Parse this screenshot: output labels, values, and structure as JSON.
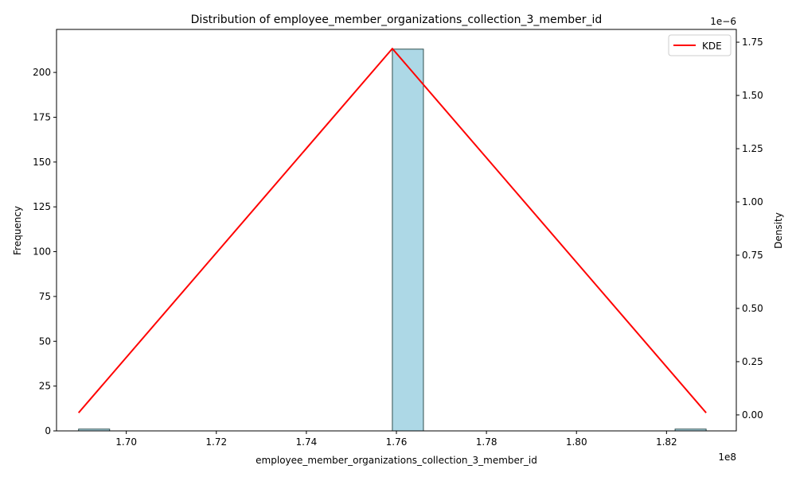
{
  "chart_data": {
    "type": "bar",
    "title": "Distribution of employee_member_organizations_collection_3_member_id",
    "xlabel": "employee_member_organizations_collection_3_member_id",
    "ylabel_left": "Frequency",
    "ylabel_right": "Density",
    "x_offset_label": "1e8",
    "y_right_offset_label": "1e−6",
    "xlim": [
      1.6845,
      1.8355
    ],
    "ylim_left": [
      0,
      224
    ],
    "ylim_right": [
      -7.5e-08,
      1.81e-06
    ],
    "x_ticks": [
      1.7,
      1.72,
      1.74,
      1.76,
      1.78,
      1.8,
      1.82
    ],
    "x_tick_labels": [
      "1.70",
      "1.72",
      "1.74",
      "1.76",
      "1.78",
      "1.80",
      "1.82"
    ],
    "y_left_ticks": [
      0,
      25,
      50,
      75,
      100,
      125,
      150,
      175,
      200
    ],
    "y_left_tick_labels": [
      "0",
      "25",
      "50",
      "75",
      "100",
      "125",
      "150",
      "175",
      "200"
    ],
    "y_right_ticks": [
      0,
      2.5e-07,
      5e-07,
      7.5e-07,
      1e-06,
      1.25e-06,
      1.5e-06,
      1.75e-06
    ],
    "y_right_tick_labels": [
      "0.00",
      "0.25",
      "0.50",
      "0.75",
      "1.00",
      "1.25",
      "1.50",
      "1.75"
    ],
    "bins": [
      {
        "x0": 1.6894,
        "x1": 1.6963,
        "count": 1
      },
      {
        "x0": 1.7591,
        "x1": 1.766,
        "count": 213
      },
      {
        "x0": 1.8219,
        "x1": 1.8288,
        "count": 1
      }
    ],
    "kde": {
      "name": "KDE",
      "x": [
        1.6894,
        1.7591,
        1.8288
      ],
      "y": [
        1e-08,
        1.72e-06,
        1e-08
      ]
    },
    "legend_position": "top-right",
    "grid": false,
    "colors": {
      "bar_fill": "#add8e6",
      "bar_edge": "#2f4f4f",
      "kde_line": "#ff0000"
    }
  }
}
